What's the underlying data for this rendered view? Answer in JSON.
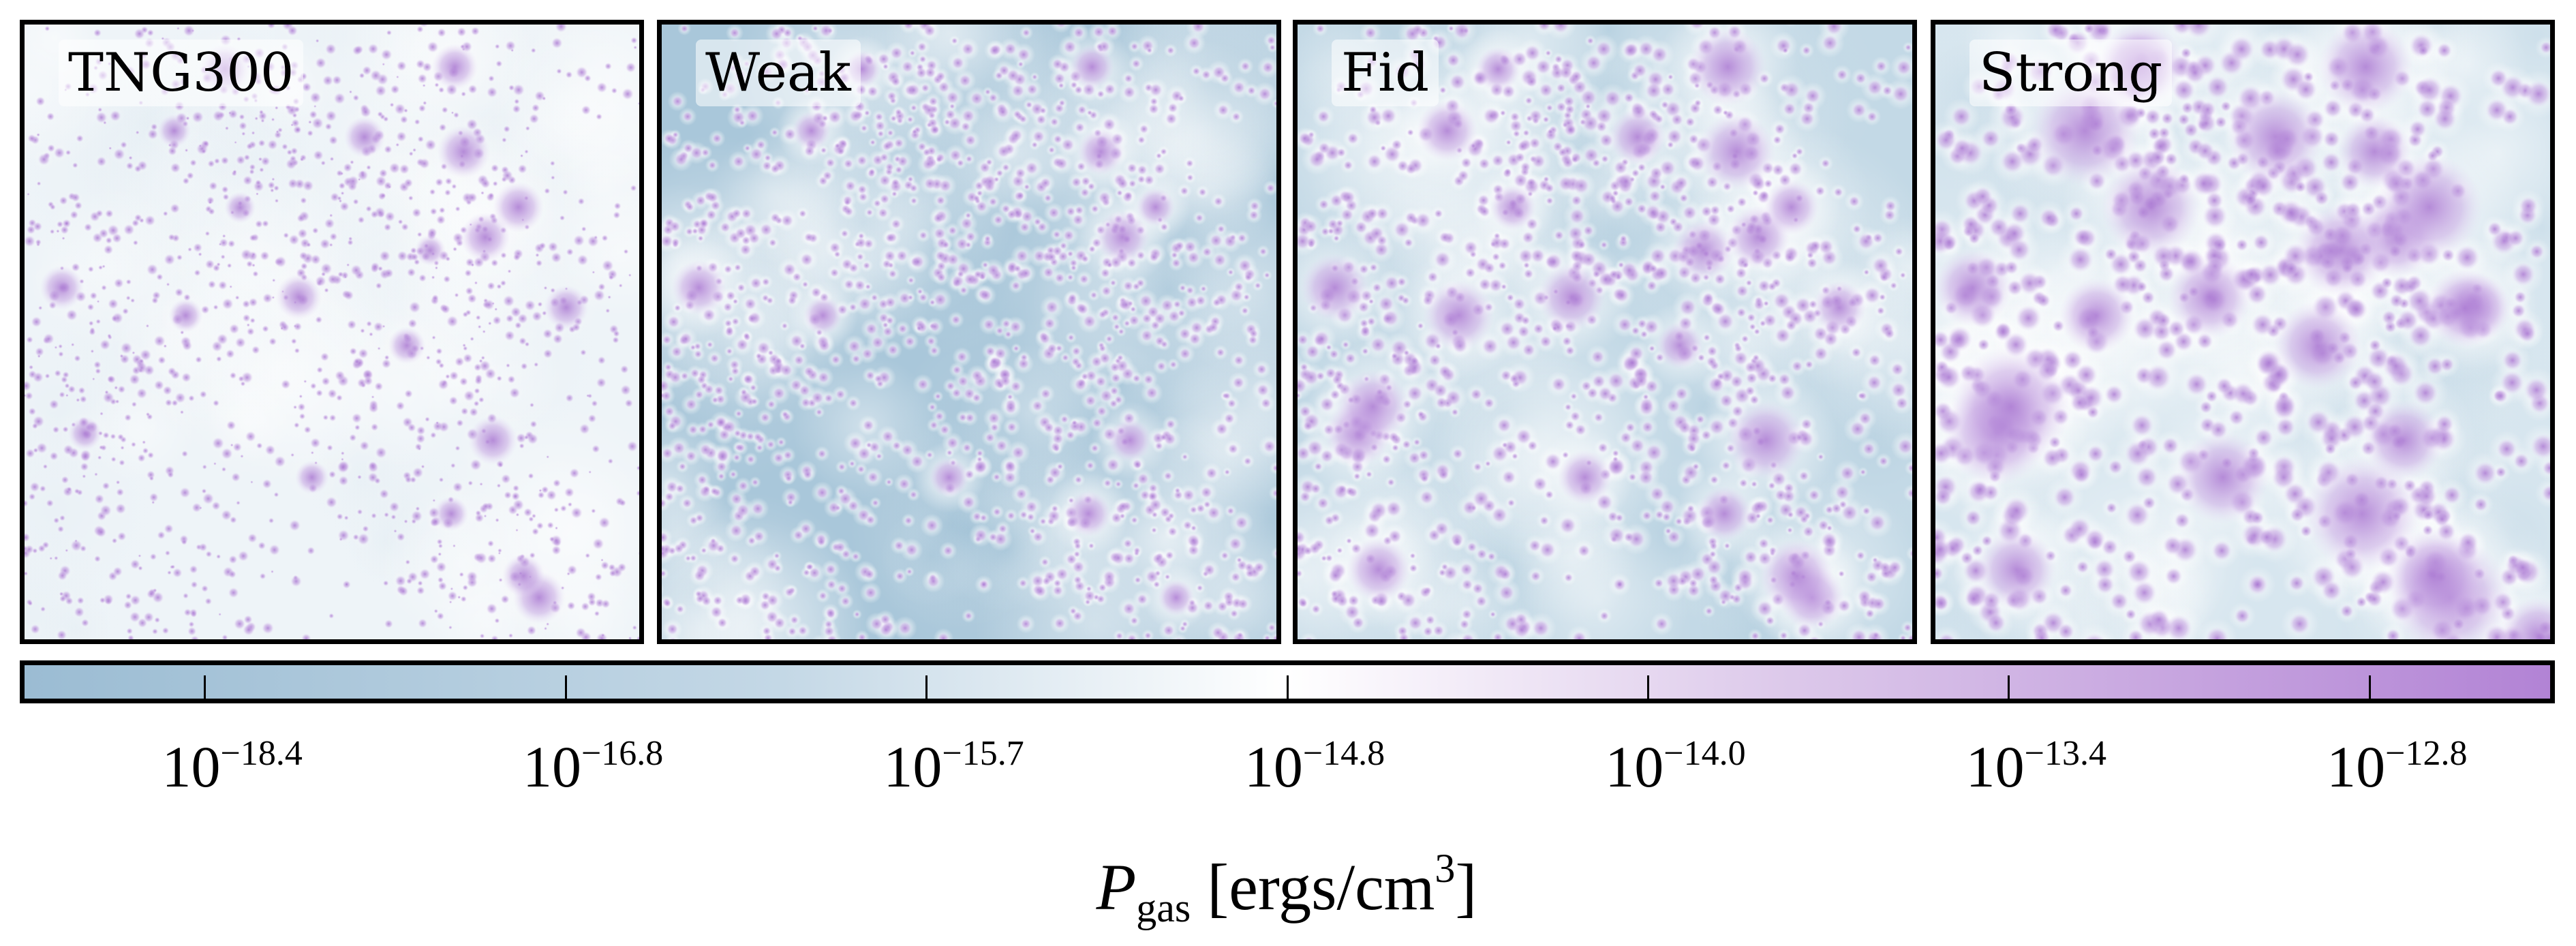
{
  "chart_data": {
    "type": "heatmap",
    "panels": [
      {
        "label": "TNG300"
      },
      {
        "label": "Weak"
      },
      {
        "label": "Fid"
      },
      {
        "label": "Strong"
      }
    ],
    "colorbar": {
      "colors": [
        "#9bbcd3",
        "#ffffff",
        "#b283d5"
      ],
      "scale": "log",
      "tick_base": "10",
      "tick_exponents": [
        "−18.4",
        "−16.8",
        "−15.7",
        "−14.8",
        "−14.0",
        "−13.4",
        "−12.8"
      ],
      "label_symbol": "P",
      "label_subscript": "gas",
      "label_units": "[ergs/cm",
      "label_units_power": "3",
      "label_units_close": "]"
    }
  }
}
